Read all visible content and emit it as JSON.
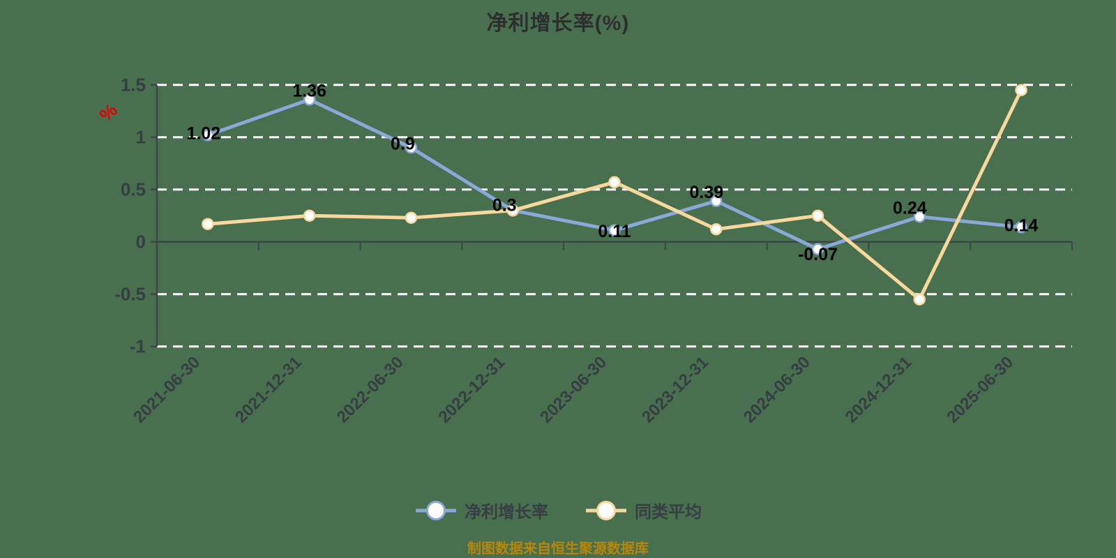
{
  "title": "净利增长率(%)",
  "unit_mark": "%",
  "source_note": "制图数据来自恒生聚源数据库",
  "colors": {
    "background": "#48704f",
    "series_main": "#8aa8d8",
    "series_avg": "#f8d89c",
    "grid": "#ffffff",
    "axis": "#3d4549",
    "tick_label": "#363e44",
    "data_label": "#000000",
    "note": "#b8860b",
    "unit_mark": "#e60000"
  },
  "legend": {
    "items": [
      {
        "label": "净利增长率",
        "color": "#8aa8d8"
      },
      {
        "label": "同类平均",
        "color": "#f8d89c"
      }
    ]
  },
  "chart_data": {
    "type": "line",
    "title": "净利增长率(%)",
    "categories": [
      "2021-06-30",
      "2021-12-31",
      "2022-06-30",
      "2022-12-31",
      "2023-06-30",
      "2023-12-31",
      "2024-06-30",
      "2024-12-31",
      "2025-06-30"
    ],
    "series": [
      {
        "name": "净利增长率",
        "color": "#8aa8d8",
        "values": [
          1.02,
          1.36,
          0.9,
          0.3,
          0.11,
          0.39,
          -0.07,
          0.24,
          0.14
        ],
        "point_labels": [
          "1.02",
          "1.36",
          "0.9",
          "0.3",
          "0.11",
          "0.39",
          "-0.07",
          "0.24",
          "0.14"
        ]
      },
      {
        "name": "同类平均",
        "color": "#f8d89c",
        "values": [
          0.17,
          0.25,
          0.23,
          0.3,
          0.57,
          0.12,
          0.25,
          -0.55,
          1.45
        ],
        "point_labels": []
      }
    ],
    "ylim": [
      -1,
      1.5
    ],
    "yticks": [
      1.5,
      1,
      0.5,
      0,
      -0.5,
      -1
    ],
    "ytick_labels": [
      "1.5",
      "1",
      "0.5",
      "0",
      "-0.5",
      "-1"
    ],
    "xlabel": "",
    "ylabel": "",
    "grid": "white-dashed-horizontal",
    "zero_line": "solid",
    "legend_position": "bottom-center",
    "marker": "circle-white-fill"
  }
}
